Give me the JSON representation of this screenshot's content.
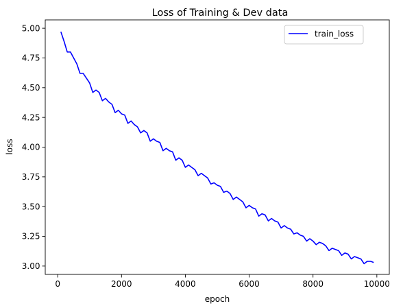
{
  "chart_data": {
    "type": "line",
    "title": "Loss of Training & Dev data",
    "xlabel": "epoch",
    "ylabel": "loss",
    "xlim": [
      -390,
      10390
    ],
    "ylim": [
      2.93,
      5.07
    ],
    "xticks": [
      0,
      2000,
      4000,
      6000,
      8000,
      10000
    ],
    "xtick_labels": [
      "0",
      "2000",
      "4000",
      "6000",
      "8000",
      "10000"
    ],
    "yticks": [
      3.0,
      3.25,
      3.5,
      3.75,
      4.0,
      4.25,
      4.5,
      4.75,
      5.0
    ],
    "ytick_labels": [
      "3.00",
      "3.25",
      "3.50",
      "3.75",
      "4.00",
      "4.25",
      "4.50",
      "4.75",
      "5.00"
    ],
    "grid": false,
    "legend_position": "top-right",
    "colors": {
      "train_loss": "#0000ff",
      "axes": "#000000",
      "background": "#ffffff"
    },
    "series": [
      {
        "name": "train_loss",
        "x": [
          100,
          200,
          300,
          400,
          500,
          600,
          700,
          800,
          900,
          1000,
          1100,
          1200,
          1300,
          1400,
          1500,
          1600,
          1700,
          1800,
          1900,
          2000,
          2100,
          2200,
          2300,
          2400,
          2500,
          2600,
          2700,
          2800,
          2900,
          3000,
          3100,
          3200,
          3300,
          3400,
          3500,
          3600,
          3700,
          3800,
          3900,
          4000,
          4100,
          4200,
          4300,
          4400,
          4500,
          4600,
          4700,
          4800,
          4900,
          5000,
          5100,
          5200,
          5300,
          5400,
          5500,
          5600,
          5700,
          5800,
          5900,
          6000,
          6100,
          6200,
          6300,
          6400,
          6500,
          6600,
          6700,
          6800,
          6900,
          7000,
          7100,
          7200,
          7300,
          7400,
          7500,
          7600,
          7700,
          7800,
          7900,
          8000,
          8100,
          8200,
          8300,
          8400,
          8500,
          8600,
          8700,
          8800,
          8900,
          9000,
          9100,
          9200,
          9300,
          9400,
          9500,
          9600,
          9700,
          9800,
          9900
        ],
        "values": [
          4.97,
          4.89,
          4.8,
          4.8,
          4.75,
          4.7,
          4.62,
          4.62,
          4.58,
          4.54,
          4.46,
          4.48,
          4.46,
          4.39,
          4.41,
          4.38,
          4.36,
          4.29,
          4.31,
          4.28,
          4.27,
          4.2,
          4.22,
          4.19,
          4.17,
          4.12,
          4.14,
          4.12,
          4.05,
          4.07,
          4.05,
          4.04,
          3.97,
          3.99,
          3.97,
          3.96,
          3.89,
          3.91,
          3.89,
          3.83,
          3.85,
          3.83,
          3.81,
          3.76,
          3.78,
          3.76,
          3.74,
          3.69,
          3.7,
          3.68,
          3.67,
          3.62,
          3.63,
          3.61,
          3.56,
          3.58,
          3.56,
          3.54,
          3.49,
          3.51,
          3.49,
          3.48,
          3.42,
          3.44,
          3.43,
          3.38,
          3.4,
          3.38,
          3.37,
          3.32,
          3.34,
          3.32,
          3.31,
          3.27,
          3.28,
          3.26,
          3.25,
          3.21,
          3.23,
          3.21,
          3.18,
          3.2,
          3.19,
          3.17,
          3.13,
          3.15,
          3.14,
          3.13,
          3.09,
          3.11,
          3.1,
          3.06,
          3.08,
          3.07,
          3.06,
          3.02,
          3.04,
          3.04,
          3.03
        ]
      }
    ]
  }
}
